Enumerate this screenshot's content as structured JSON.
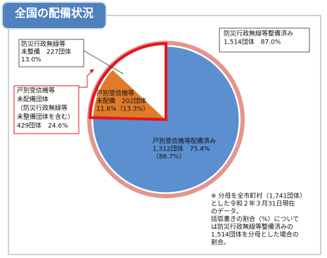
{
  "chart_data": {
    "type": "pie",
    "title": "全国の配備状況",
    "values": [
      75.4,
      11.6,
      13.0
    ],
    "colors": [
      "#5b8fd0",
      "#e07b2a",
      "#ffffff"
    ],
    "label_lines": [
      [
        "戸別受信機等配備済み",
        "1,312団体　75.4%",
        "（86.7%）"
      ],
      [
        "戸別受信機等",
        "未配備　202団体",
        "11.6%（13.3%）"
      ],
      [
        "防災行政無線等",
        "未整備　227団体",
        "13.0%"
      ]
    ],
    "annotations": [
      [
        "防災行政無線等整備済み",
        "1,514団体　87.0%"
      ],
      [
        "戸別受信機等",
        "未配備団体",
        "（防災行政無線等",
        "未整備団体を含む）",
        "429団体　24.6%"
      ]
    ],
    "note": [
      "※ 分母を全市町村（1,741団体）",
      "とした令和２年３月31日現在",
      "のデータ。",
      "括弧書きの割合（%）について",
      "は防災行政無線等整備済みの",
      "1,514団体を分母とした場合の",
      "割合。"
    ]
  }
}
